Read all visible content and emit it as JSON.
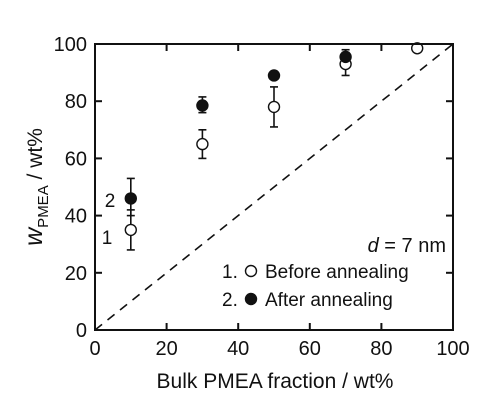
{
  "chart_data": {
    "type": "scatter",
    "xlabel": "Bulk PMEA fraction / wt%",
    "ylabel": {
      "main": "w",
      "subscript": "PMEA",
      "unit": " / wt%"
    },
    "xlim": [
      0,
      100
    ],
    "ylim": [
      0,
      100
    ],
    "xticks": [
      0,
      20,
      40,
      60,
      80,
      100
    ],
    "yticks": [
      0,
      20,
      40,
      60,
      80,
      100
    ],
    "grid": false,
    "legend_position": "bottom-right",
    "reference_line": {
      "style": "dashed",
      "from": [
        0,
        0
      ],
      "to": [
        100,
        100
      ]
    },
    "annotation": {
      "prefix": "d",
      "suffix": " = 7 nm"
    },
    "series_labels_near_points": [
      "1",
      "2"
    ],
    "series": [
      {
        "name": "Before annealing",
        "legend_label": "1.",
        "marker": "open-circle",
        "color": "#111111",
        "points": [
          {
            "x": 10,
            "y": 35,
            "err_low": 7,
            "err_high": 7
          },
          {
            "x": 30,
            "y": 65,
            "err_low": 5,
            "err_high": 5
          },
          {
            "x": 50,
            "y": 78,
            "err_low": 7,
            "err_high": 7
          },
          {
            "x": 70,
            "y": 93,
            "err_low": 4,
            "err_high": 4
          },
          {
            "x": 90,
            "y": 98.5,
            "err_low": 1,
            "err_high": 1
          }
        ]
      },
      {
        "name": "After annealing",
        "legend_label": "2.",
        "marker": "filled-circle",
        "color": "#111111",
        "points": [
          {
            "x": 10,
            "y": 46,
            "err_low": 6,
            "err_high": 7
          },
          {
            "x": 30,
            "y": 78.5,
            "err_low": 2.5,
            "err_high": 3
          },
          {
            "x": 50,
            "y": 89,
            "err_low": 1,
            "err_high": 1
          },
          {
            "x": 70,
            "y": 95.5,
            "err_low": 2,
            "err_high": 2.5
          }
        ]
      }
    ]
  }
}
